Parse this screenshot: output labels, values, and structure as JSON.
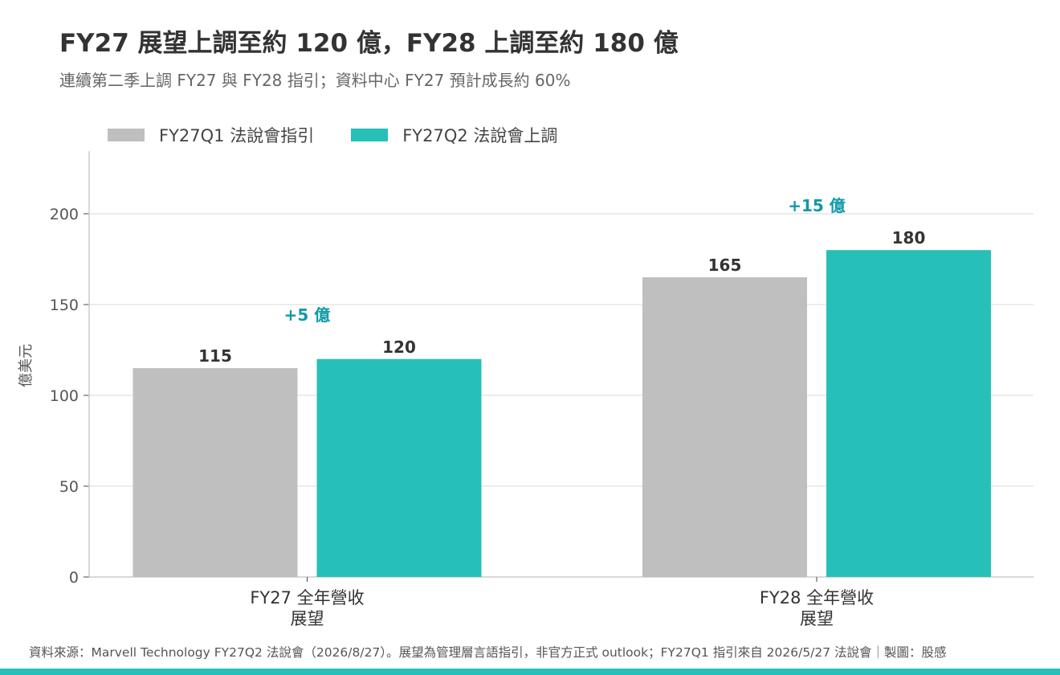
{
  "title": "FY27 展望上調至約 120 億，FY28 上調至約 180 億",
  "subtitle": "連續第二季上調 FY27 與 FY28 指引；資料中心 FY27 預計成長約 60%",
  "source": "資料來源：Marvell Technology FY27Q2 法說會（2026/8/27）。展望為管理層言語指引，非官方正式 outlook；FY27Q1 指引來自 2026/5/27 法說會｜製圖：股感",
  "colors": {
    "q1": "#bfbfbf",
    "q2": "#26c0b9",
    "delta": "#0e9aa7",
    "band": "#26c0b9",
    "grid": "#e6e6e6",
    "axis": "#cccccc"
  },
  "chart_data": {
    "type": "bar",
    "categories": [
      [
        "FY27 全年營收",
        "展望"
      ],
      [
        "FY28 全年營收",
        "展望"
      ]
    ],
    "series": [
      {
        "name": "FY27Q1 法說會指引",
        "values": [
          115,
          165
        ]
      },
      {
        "name": "FY27Q2 法說會上調",
        "values": [
          120,
          180
        ]
      }
    ],
    "data_labels": [
      [
        "115",
        "165"
      ],
      [
        "120",
        "180"
      ]
    ],
    "annotations": [
      "+5 億",
      "+15 億"
    ],
    "ylabel": "億美元",
    "ylim": [
      0,
      225
    ],
    "yticks": [
      0,
      50,
      100,
      150,
      200
    ],
    "grid": true,
    "legend_position": "top-left"
  }
}
